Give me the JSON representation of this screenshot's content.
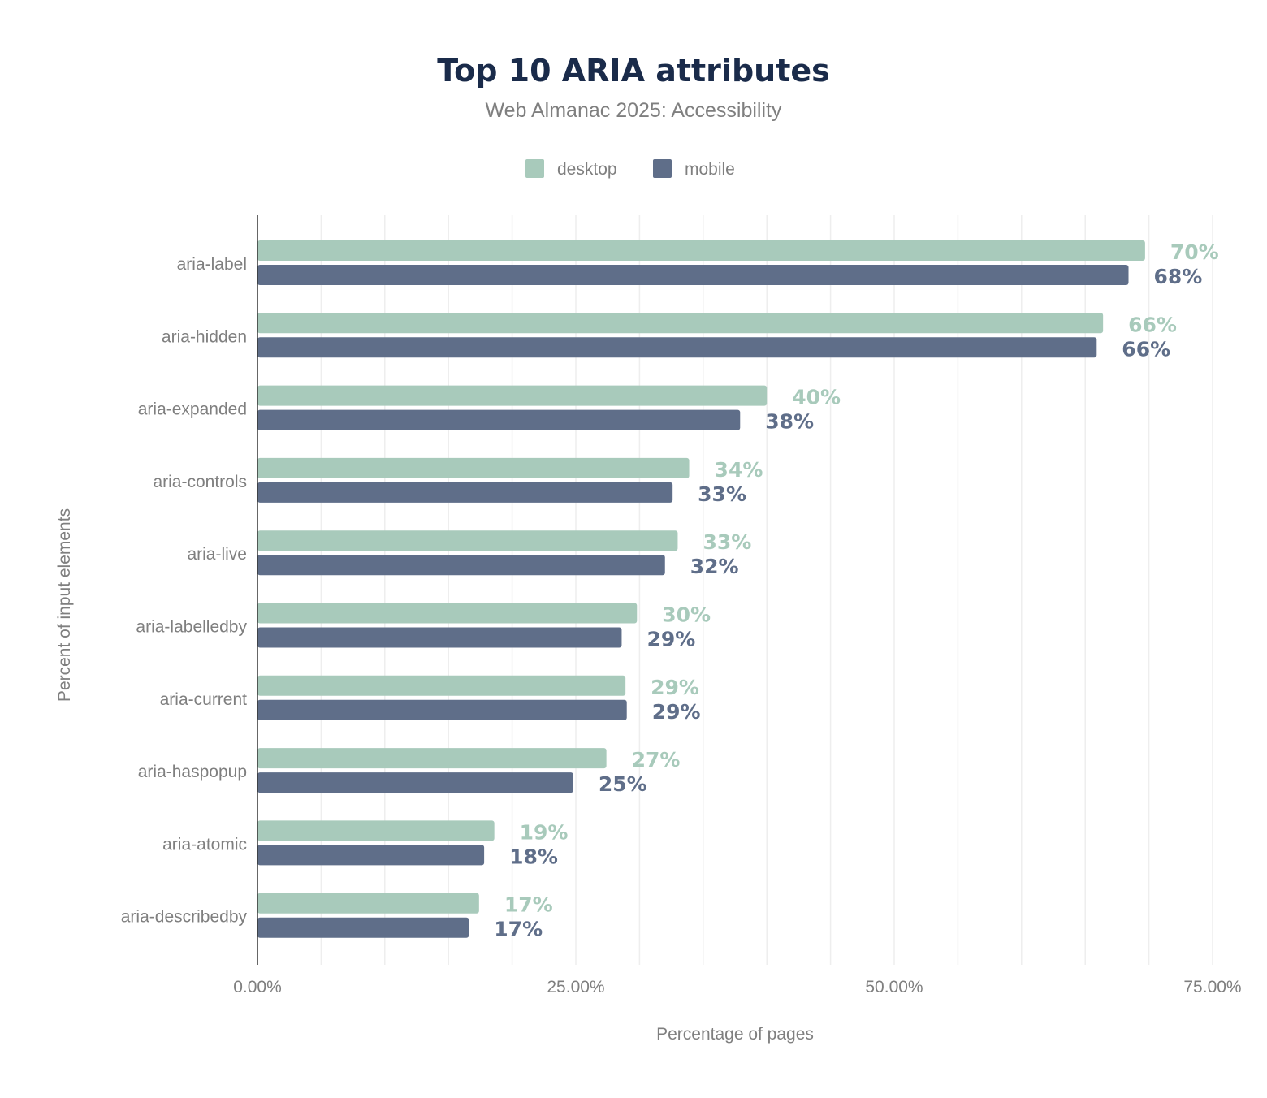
{
  "chart_data": {
    "type": "bar",
    "orientation": "horizontal",
    "title": "Top 10 ARIA attributes",
    "subtitle": "Web Almanac 2025: Accessibility",
    "xlabel": "Percentage of pages",
    "ylabel": "Percent of input elements",
    "xlim": [
      0,
      75
    ],
    "xticks": [
      "0.00%",
      "25.00%",
      "50.00%",
      "75.00%"
    ],
    "xtick_values": [
      0,
      25,
      50,
      75
    ],
    "grid": true,
    "legend": "top-center",
    "categories": [
      "aria-label",
      "aria-hidden",
      "aria-expanded",
      "aria-controls",
      "aria-live",
      "aria-labelledby",
      "aria-current",
      "aria-haspopup",
      "aria-atomic",
      "aria-describedby"
    ],
    "series": [
      {
        "name": "desktop",
        "color": "#a8cabb",
        "values": [
          69.7,
          66.4,
          40.0,
          33.9,
          33.0,
          29.8,
          28.9,
          27.4,
          18.6,
          17.4
        ],
        "labels": [
          "70%",
          "66%",
          "40%",
          "34%",
          "33%",
          "30%",
          "29%",
          "27%",
          "19%",
          "17%"
        ]
      },
      {
        "name": "mobile",
        "color": "#5f6e89",
        "values": [
          68.4,
          65.9,
          37.9,
          32.6,
          32.0,
          28.6,
          29.0,
          24.8,
          17.8,
          16.6
        ],
        "labels": [
          "68%",
          "66%",
          "38%",
          "33%",
          "32%",
          "29%",
          "29%",
          "25%",
          "18%",
          "17%"
        ]
      }
    ]
  }
}
